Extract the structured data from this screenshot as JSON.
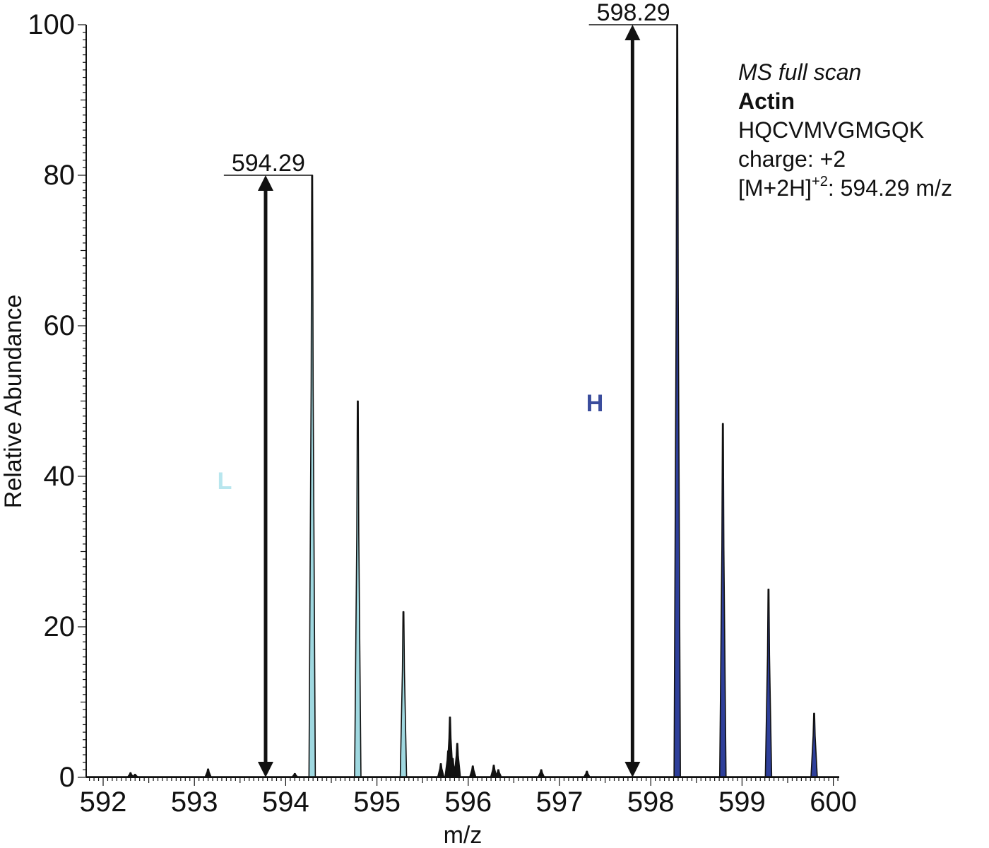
{
  "chart_data": {
    "type": "bar",
    "xlabel": "m/z",
    "ylabel": "Relative Abundance",
    "xlim": [
      592,
      600.1
    ],
    "ylim": [
      0,
      100
    ],
    "x_ticks": [
      592,
      593,
      594,
      595,
      596,
      597,
      598,
      599,
      600
    ],
    "y_ticks": [
      0,
      20,
      40,
      60,
      80,
      100
    ],
    "peak_labels": [
      {
        "x": 594.29,
        "y": 80,
        "text": "594.29"
      },
      {
        "x": 598.29,
        "y": 100,
        "text": "598.29"
      }
    ],
    "series": [
      {
        "name": "L",
        "label_color": "#b8e6ee",
        "fill_color": "#9fd8e0",
        "x": [
          594.29,
          594.79,
          595.29
        ],
        "y": [
          80,
          50,
          22
        ]
      },
      {
        "name": "H",
        "label_color": "#3a4c9c",
        "fill_color": "#2e3f9a",
        "x": [
          598.29,
          598.79,
          599.29,
          599.79
        ],
        "y": [
          100,
          47,
          25,
          8.5
        ]
      }
    ],
    "minor_peaks": {
      "x": [
        592.3,
        592.35,
        593.15,
        594.1,
        595.7,
        595.78,
        595.8,
        595.83,
        595.88,
        596.05,
        596.28,
        596.33,
        596.8,
        597.3
      ],
      "y": [
        0.6,
        0.4,
        1.1,
        0.5,
        1.8,
        3.5,
        8,
        2.5,
        4.5,
        1.5,
        1.6,
        1.0,
        1.0,
        0.8
      ]
    },
    "arrows": [
      {
        "x": 593.78,
        "from": 0,
        "to": 80
      },
      {
        "x": 597.8,
        "from": 0,
        "to": 100
      }
    ]
  },
  "info": {
    "scan_type": "MS full scan",
    "protein": "Actin",
    "peptide": "HQCVMVGMGQK",
    "charge": "charge: +2",
    "ion_prefix": "[M+2H]",
    "ion_sup": "+2",
    "ion_value": ": 594.29 m/z"
  }
}
